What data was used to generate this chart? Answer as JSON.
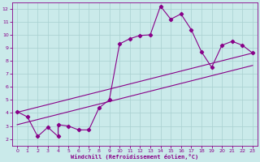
{
  "xlabel": "Windchill (Refroidissement éolien,°C)",
  "bg_color": "#caeaea",
  "grid_color": "#a8d0d0",
  "line_color": "#880088",
  "x_main": [
    0,
    1,
    2,
    3,
    4,
    4,
    5,
    6,
    7,
    8,
    9,
    10,
    11,
    12,
    13,
    14,
    15,
    16,
    17,
    18,
    19,
    20,
    21,
    22,
    23
  ],
  "y_main": [
    4.1,
    3.7,
    2.2,
    2.9,
    2.2,
    3.1,
    3.0,
    2.7,
    2.7,
    4.4,
    5.0,
    9.3,
    9.7,
    9.95,
    10.0,
    12.2,
    11.2,
    11.6,
    10.4,
    8.7,
    7.5,
    9.2,
    9.5,
    9.2,
    8.6
  ],
  "xlim": [
    -0.5,
    23.5
  ],
  "ylim": [
    1.5,
    12.5
  ],
  "xticks": [
    0,
    1,
    2,
    3,
    4,
    5,
    6,
    7,
    8,
    9,
    10,
    11,
    12,
    13,
    14,
    15,
    16,
    17,
    18,
    19,
    20,
    21,
    22,
    23
  ],
  "yticks": [
    2,
    3,
    4,
    5,
    6,
    7,
    8,
    9,
    10,
    11,
    12
  ],
  "trend1": [
    0,
    4.05,
    23,
    8.6
  ],
  "trend2": [
    0,
    3.1,
    23,
    7.65
  ]
}
